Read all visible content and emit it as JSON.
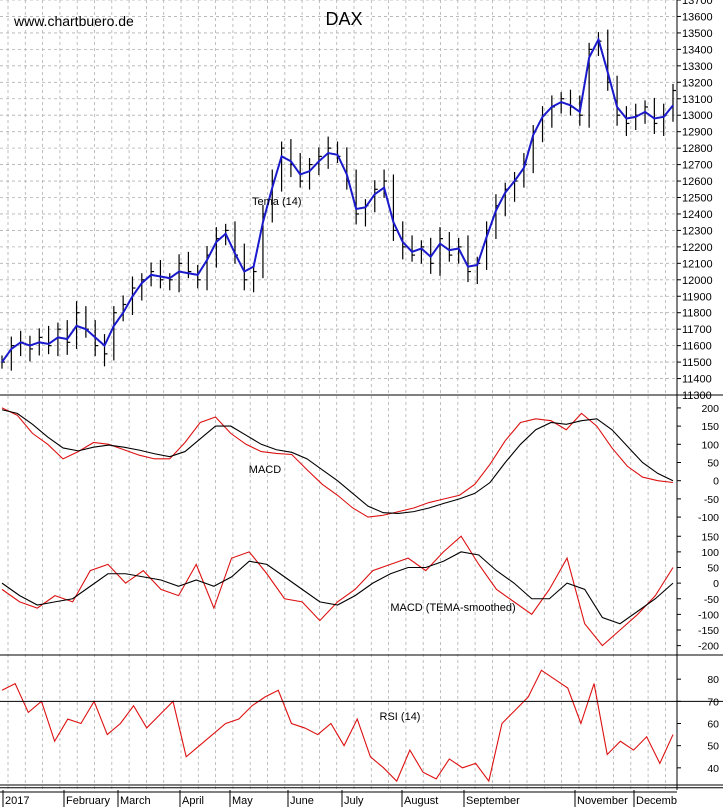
{
  "header": {
    "watermark": "www.chartbuero.de",
    "title": "DAX"
  },
  "colors": {
    "price": "#000000",
    "tema": "#1a1acc",
    "indicator_red": "#dd1111",
    "indicator_black": "#000000",
    "grid": "#b0b0b0",
    "background": "#ffffff"
  },
  "chart_data": [
    {
      "type": "ohlc",
      "title": "DAX",
      "series_label": "Tema (14)",
      "ylim": [
        11300,
        13700
      ],
      "yticks": [
        11300,
        11400,
        11500,
        11600,
        11700,
        11800,
        11900,
        12000,
        12100,
        12200,
        12300,
        12400,
        12500,
        12600,
        12700,
        12800,
        12900,
        13000,
        13100,
        13200,
        13300,
        13400,
        13500,
        13600,
        13700
      ],
      "grid": true,
      "approx_closes": [
        11500,
        11600,
        11620,
        11580,
        11650,
        11600,
        11700,
        11620,
        11800,
        11700,
        11600,
        11550,
        11800,
        11850,
        11950,
        12000,
        12050,
        12000,
        12000,
        12100,
        12050,
        12000,
        12150,
        12250,
        12300,
        12150,
        12000,
        12050,
        12400,
        12600,
        12800,
        12700,
        12600,
        12700,
        12750,
        12800,
        12750,
        12600,
        12400,
        12450,
        12550,
        12600,
        12300,
        12200,
        12150,
        12200,
        12100,
        12250,
        12150,
        12200,
        12050,
        12100,
        12300,
        12450,
        12550,
        12600,
        12700,
        12900,
        13000,
        13050,
        13100,
        13050,
        13000,
        13400,
        13450,
        13200,
        13000,
        12950,
        13000,
        13050,
        12950,
        13000,
        13150
      ],
      "tema": [
        11500,
        11580,
        11620,
        11600,
        11620,
        11610,
        11650,
        11640,
        11720,
        11700,
        11650,
        11600,
        11720,
        11800,
        11900,
        11980,
        12030,
        12020,
        12010,
        12050,
        12040,
        12030,
        12120,
        12230,
        12280,
        12160,
        12050,
        12080,
        12350,
        12560,
        12750,
        12720,
        12640,
        12660,
        12720,
        12770,
        12760,
        12640,
        12430,
        12440,
        12520,
        12560,
        12350,
        12230,
        12170,
        12190,
        12140,
        12220,
        12180,
        12190,
        12080,
        12090,
        12260,
        12420,
        12530,
        12600,
        12680,
        12880,
        12990,
        13050,
        13080,
        13060,
        13020,
        13350,
        13460,
        13260,
        13050,
        12980,
        12990,
        13020,
        12980,
        12990,
        13060
      ]
    },
    {
      "type": "line",
      "label": "MACD",
      "ylim": [
        -130,
        230
      ],
      "yticks": [
        -100,
        -50,
        0,
        50,
        100,
        150,
        200
      ],
      "series": [
        {
          "color": "red",
          "values": [
            200,
            180,
            130,
            100,
            60,
            80,
            105,
            100,
            85,
            70,
            60,
            60,
            105,
            160,
            175,
            130,
            100,
            80,
            75,
            72,
            30,
            -10,
            -40,
            -75,
            -100,
            -95,
            -85,
            -75,
            -60,
            -50,
            -40,
            -10,
            45,
            110,
            160,
            170,
            165,
            140,
            185,
            150,
            90,
            40,
            10,
            0,
            -5
          ]
        },
        {
          "color": "black",
          "values": [
            195,
            185,
            155,
            120,
            90,
            82,
            92,
            98,
            92,
            84,
            74,
            66,
            80,
            115,
            150,
            150,
            125,
            100,
            85,
            78,
            60,
            30,
            0,
            -35,
            -70,
            -88,
            -90,
            -85,
            -75,
            -62,
            -50,
            -35,
            -5,
            50,
            100,
            140,
            160,
            155,
            165,
            170,
            140,
            95,
            50,
            20,
            0
          ]
        }
      ]
    },
    {
      "type": "line",
      "label": "MACD (TEMA-smoothed)",
      "ylim": [
        -230,
        170
      ],
      "yticks": [
        -200,
        -150,
        -100,
        -50,
        0,
        50,
        100,
        150
      ],
      "series": [
        {
          "color": "red",
          "values": [
            -20,
            -60,
            -80,
            -40,
            -60,
            40,
            60,
            0,
            40,
            -20,
            -40,
            60,
            -80,
            80,
            100,
            30,
            -50,
            -60,
            -120,
            -60,
            -20,
            40,
            60,
            80,
            40,
            100,
            150,
            60,
            -20,
            -60,
            -100,
            -20,
            80,
            -130,
            -200,
            -150,
            -100,
            -40,
            50
          ]
        },
        {
          "color": "black",
          "values": [
            0,
            -40,
            -70,
            -60,
            -50,
            -10,
            30,
            30,
            20,
            10,
            -10,
            10,
            -10,
            20,
            70,
            60,
            20,
            -20,
            -60,
            -70,
            -40,
            0,
            30,
            50,
            50,
            70,
            100,
            90,
            40,
            0,
            -50,
            -50,
            0,
            -20,
            -110,
            -130,
            -90,
            -50,
            0
          ]
        }
      ]
    },
    {
      "type": "line",
      "label": "RSI (14)",
      "ylim": [
        30,
        90
      ],
      "yticks": [
        40,
        50,
        60,
        70,
        80
      ],
      "reference_lines": [
        31,
        70
      ],
      "series": [
        {
          "color": "red",
          "values": [
            75,
            78,
            65,
            70,
            52,
            62,
            60,
            70,
            55,
            60,
            68,
            58,
            64,
            70,
            45,
            50,
            55,
            60,
            62,
            68,
            72,
            75,
            60,
            58,
            55,
            60,
            50,
            62,
            45,
            40,
            34,
            48,
            38,
            35,
            44,
            40,
            42,
            34,
            60,
            66,
            72,
            84,
            80,
            76,
            60,
            78,
            46,
            52,
            48,
            54,
            42,
            55
          ]
        }
      ]
    }
  ],
  "x_axis": {
    "labels": [
      "2017",
      "February",
      "March",
      "April",
      "May",
      "June",
      "July",
      "August",
      "September",
      "November",
      "Decemb"
    ]
  }
}
